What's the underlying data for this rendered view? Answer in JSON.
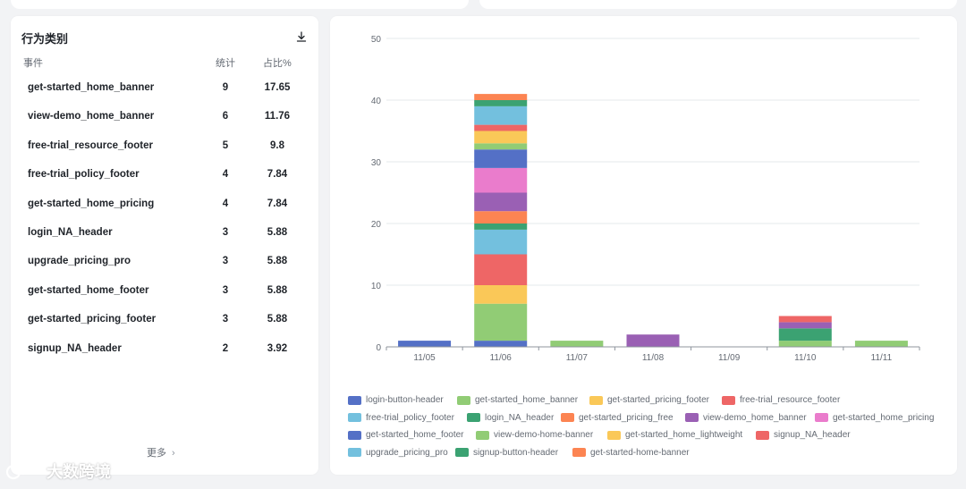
{
  "left_panel": {
    "title": "行为类别",
    "columns": {
      "event": "事件",
      "count": "统计",
      "percent": "占比%"
    },
    "rows": [
      {
        "event": "get-started_home_banner",
        "count": "9",
        "percent": "17.65"
      },
      {
        "event": "view-demo_home_banner",
        "count": "6",
        "percent": "11.76"
      },
      {
        "event": "free-trial_resource_footer",
        "count": "5",
        "percent": "9.8"
      },
      {
        "event": "free-trial_policy_footer",
        "count": "4",
        "percent": "7.84"
      },
      {
        "event": "get-started_home_pricing",
        "count": "4",
        "percent": "7.84"
      },
      {
        "event": "login_NA_header",
        "count": "3",
        "percent": "5.88"
      },
      {
        "event": "upgrade_pricing_pro",
        "count": "3",
        "percent": "5.88"
      },
      {
        "event": "get-started_home_footer",
        "count": "3",
        "percent": "5.88"
      },
      {
        "event": "get-started_pricing_footer",
        "count": "3",
        "percent": "5.88"
      },
      {
        "event": "signup_NA_header",
        "count": "2",
        "percent": "3.92"
      }
    ],
    "more_label": "更多",
    "more_chevron": "›"
  },
  "watermark": "大数跨境",
  "chart_data": {
    "type": "bar",
    "stacked": true,
    "ylim": [
      0,
      50
    ],
    "yticks": [
      0,
      10,
      20,
      30,
      40,
      50
    ],
    "categories": [
      "11/05",
      "11/06",
      "11/07",
      "11/08",
      "11/09",
      "11/10",
      "11/11"
    ],
    "series": [
      {
        "name": "login-button-header",
        "color": "#5470c6",
        "values": [
          1,
          1,
          0,
          0,
          0,
          0,
          0
        ]
      },
      {
        "name": "get-started_home_banner",
        "color": "#91cc75",
        "values": [
          0,
          6,
          1,
          0,
          0,
          1,
          1
        ]
      },
      {
        "name": "get-started_pricing_footer",
        "color": "#fac858",
        "values": [
          0,
          3,
          0,
          0,
          0,
          0,
          0
        ]
      },
      {
        "name": "free-trial_resource_footer",
        "color": "#ee6666",
        "values": [
          0,
          5,
          0,
          0,
          0,
          0,
          0
        ]
      },
      {
        "name": "free-trial_policy_footer",
        "color": "#73c0de",
        "values": [
          0,
          4,
          0,
          0,
          0,
          0,
          0
        ]
      },
      {
        "name": "login_NA_header",
        "color": "#3ba272",
        "values": [
          0,
          1,
          0,
          0,
          0,
          2,
          0
        ]
      },
      {
        "name": "get-started_pricing_free",
        "color": "#fc8452",
        "values": [
          0,
          2,
          0,
          0,
          0,
          0,
          0
        ]
      },
      {
        "name": "view-demo_home_banner",
        "color": "#9a60b4",
        "values": [
          0,
          3,
          0,
          2,
          0,
          1,
          0
        ]
      },
      {
        "name": "get-started_home_pricing",
        "color": "#ea7ccc",
        "values": [
          0,
          4,
          0,
          0,
          0,
          0,
          0
        ]
      },
      {
        "name": "get-started_home_footer",
        "color": "#5470c6",
        "values": [
          0,
          3,
          0,
          0,
          0,
          0,
          0
        ]
      },
      {
        "name": "view-demo-home-banner",
        "color": "#91cc75",
        "values": [
          0,
          1,
          0,
          0,
          0,
          0,
          0
        ]
      },
      {
        "name": "get-started_home_lightweight",
        "color": "#fac858",
        "values": [
          0,
          2,
          0,
          0,
          0,
          0,
          0
        ]
      },
      {
        "name": "signup_NA_header",
        "color": "#ee6666",
        "values": [
          0,
          1,
          0,
          0,
          0,
          1,
          0
        ]
      },
      {
        "name": "upgrade_pricing_pro",
        "color": "#73c0de",
        "values": [
          0,
          3,
          0,
          0,
          0,
          0,
          0
        ]
      },
      {
        "name": "signup-button-header",
        "color": "#3ba272",
        "values": [
          0,
          1,
          0,
          0,
          0,
          0,
          0
        ]
      },
      {
        "name": "get-started-home-banner",
        "color": "#fc8452",
        "values": [
          0,
          1,
          0,
          0,
          0,
          0,
          0
        ]
      }
    ]
  }
}
